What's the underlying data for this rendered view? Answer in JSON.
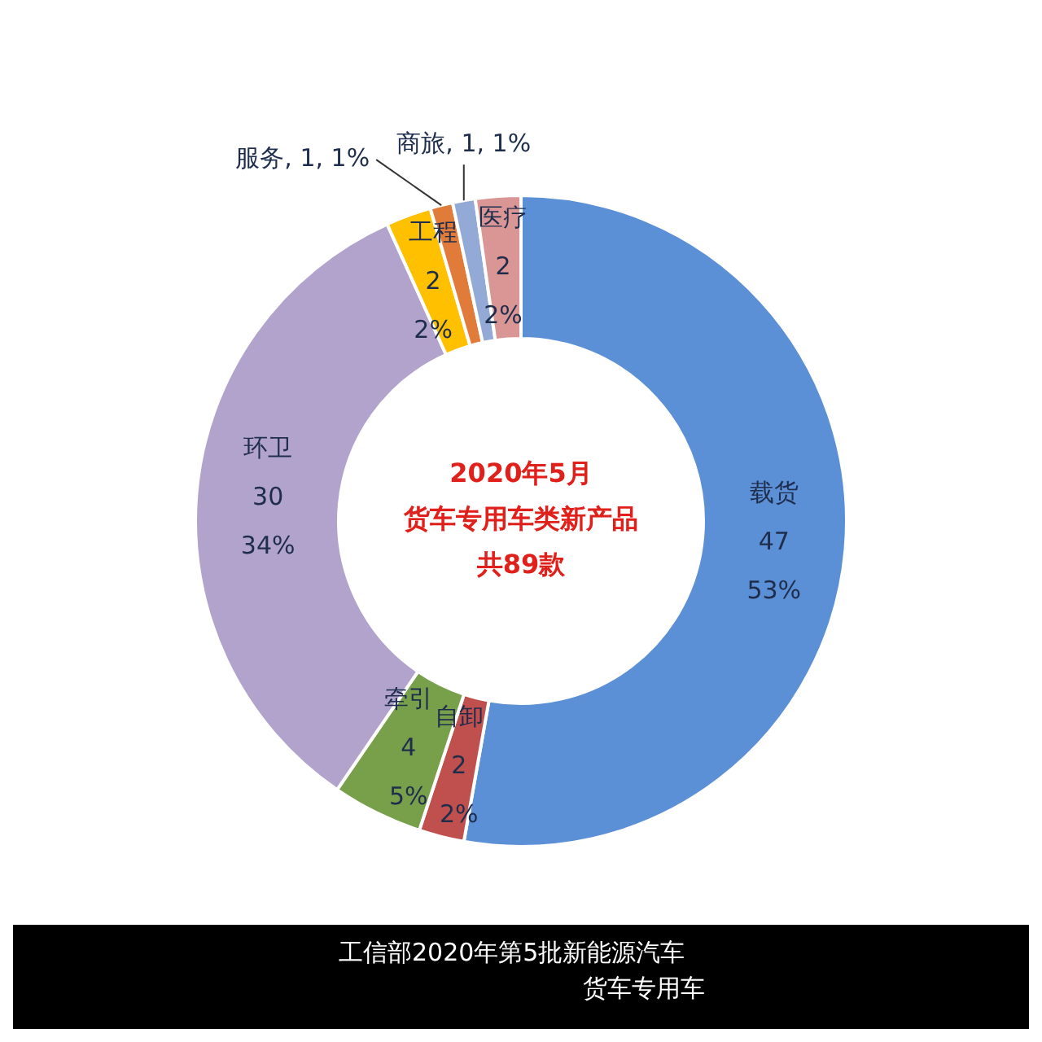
{
  "chart_data": {
    "type": "donut",
    "title": "2020年5月",
    "subtitle": "货车专用车类新产品",
    "categories": [
      "载货",
      "自卸",
      "牵引",
      "环卫",
      "工程",
      "服务",
      "商旅",
      "医疗"
    ],
    "values": [
      47,
      2,
      4,
      30,
      2,
      1,
      1,
      2
    ],
    "value_labels": [
      "47\n53%",
      "2\n2%",
      "4\n5%",
      "30\n34%",
      "2\n2%",
      "1, 1%",
      "1, 1%",
      "2\n2%"
    ],
    "colors": [
      "#5b8fd6",
      "#c0504d",
      "#78a04b",
      "#b2a3cc",
      "#ffc000",
      "#e07b39",
      "#93aad6",
      "#d99694"
    ],
    "data_labels": true,
    "legend": false,
    "annotations": [
      "共89款",
      "工信部2020年第5批新能源汽车",
      "货车专用车"
    ]
  }
}
